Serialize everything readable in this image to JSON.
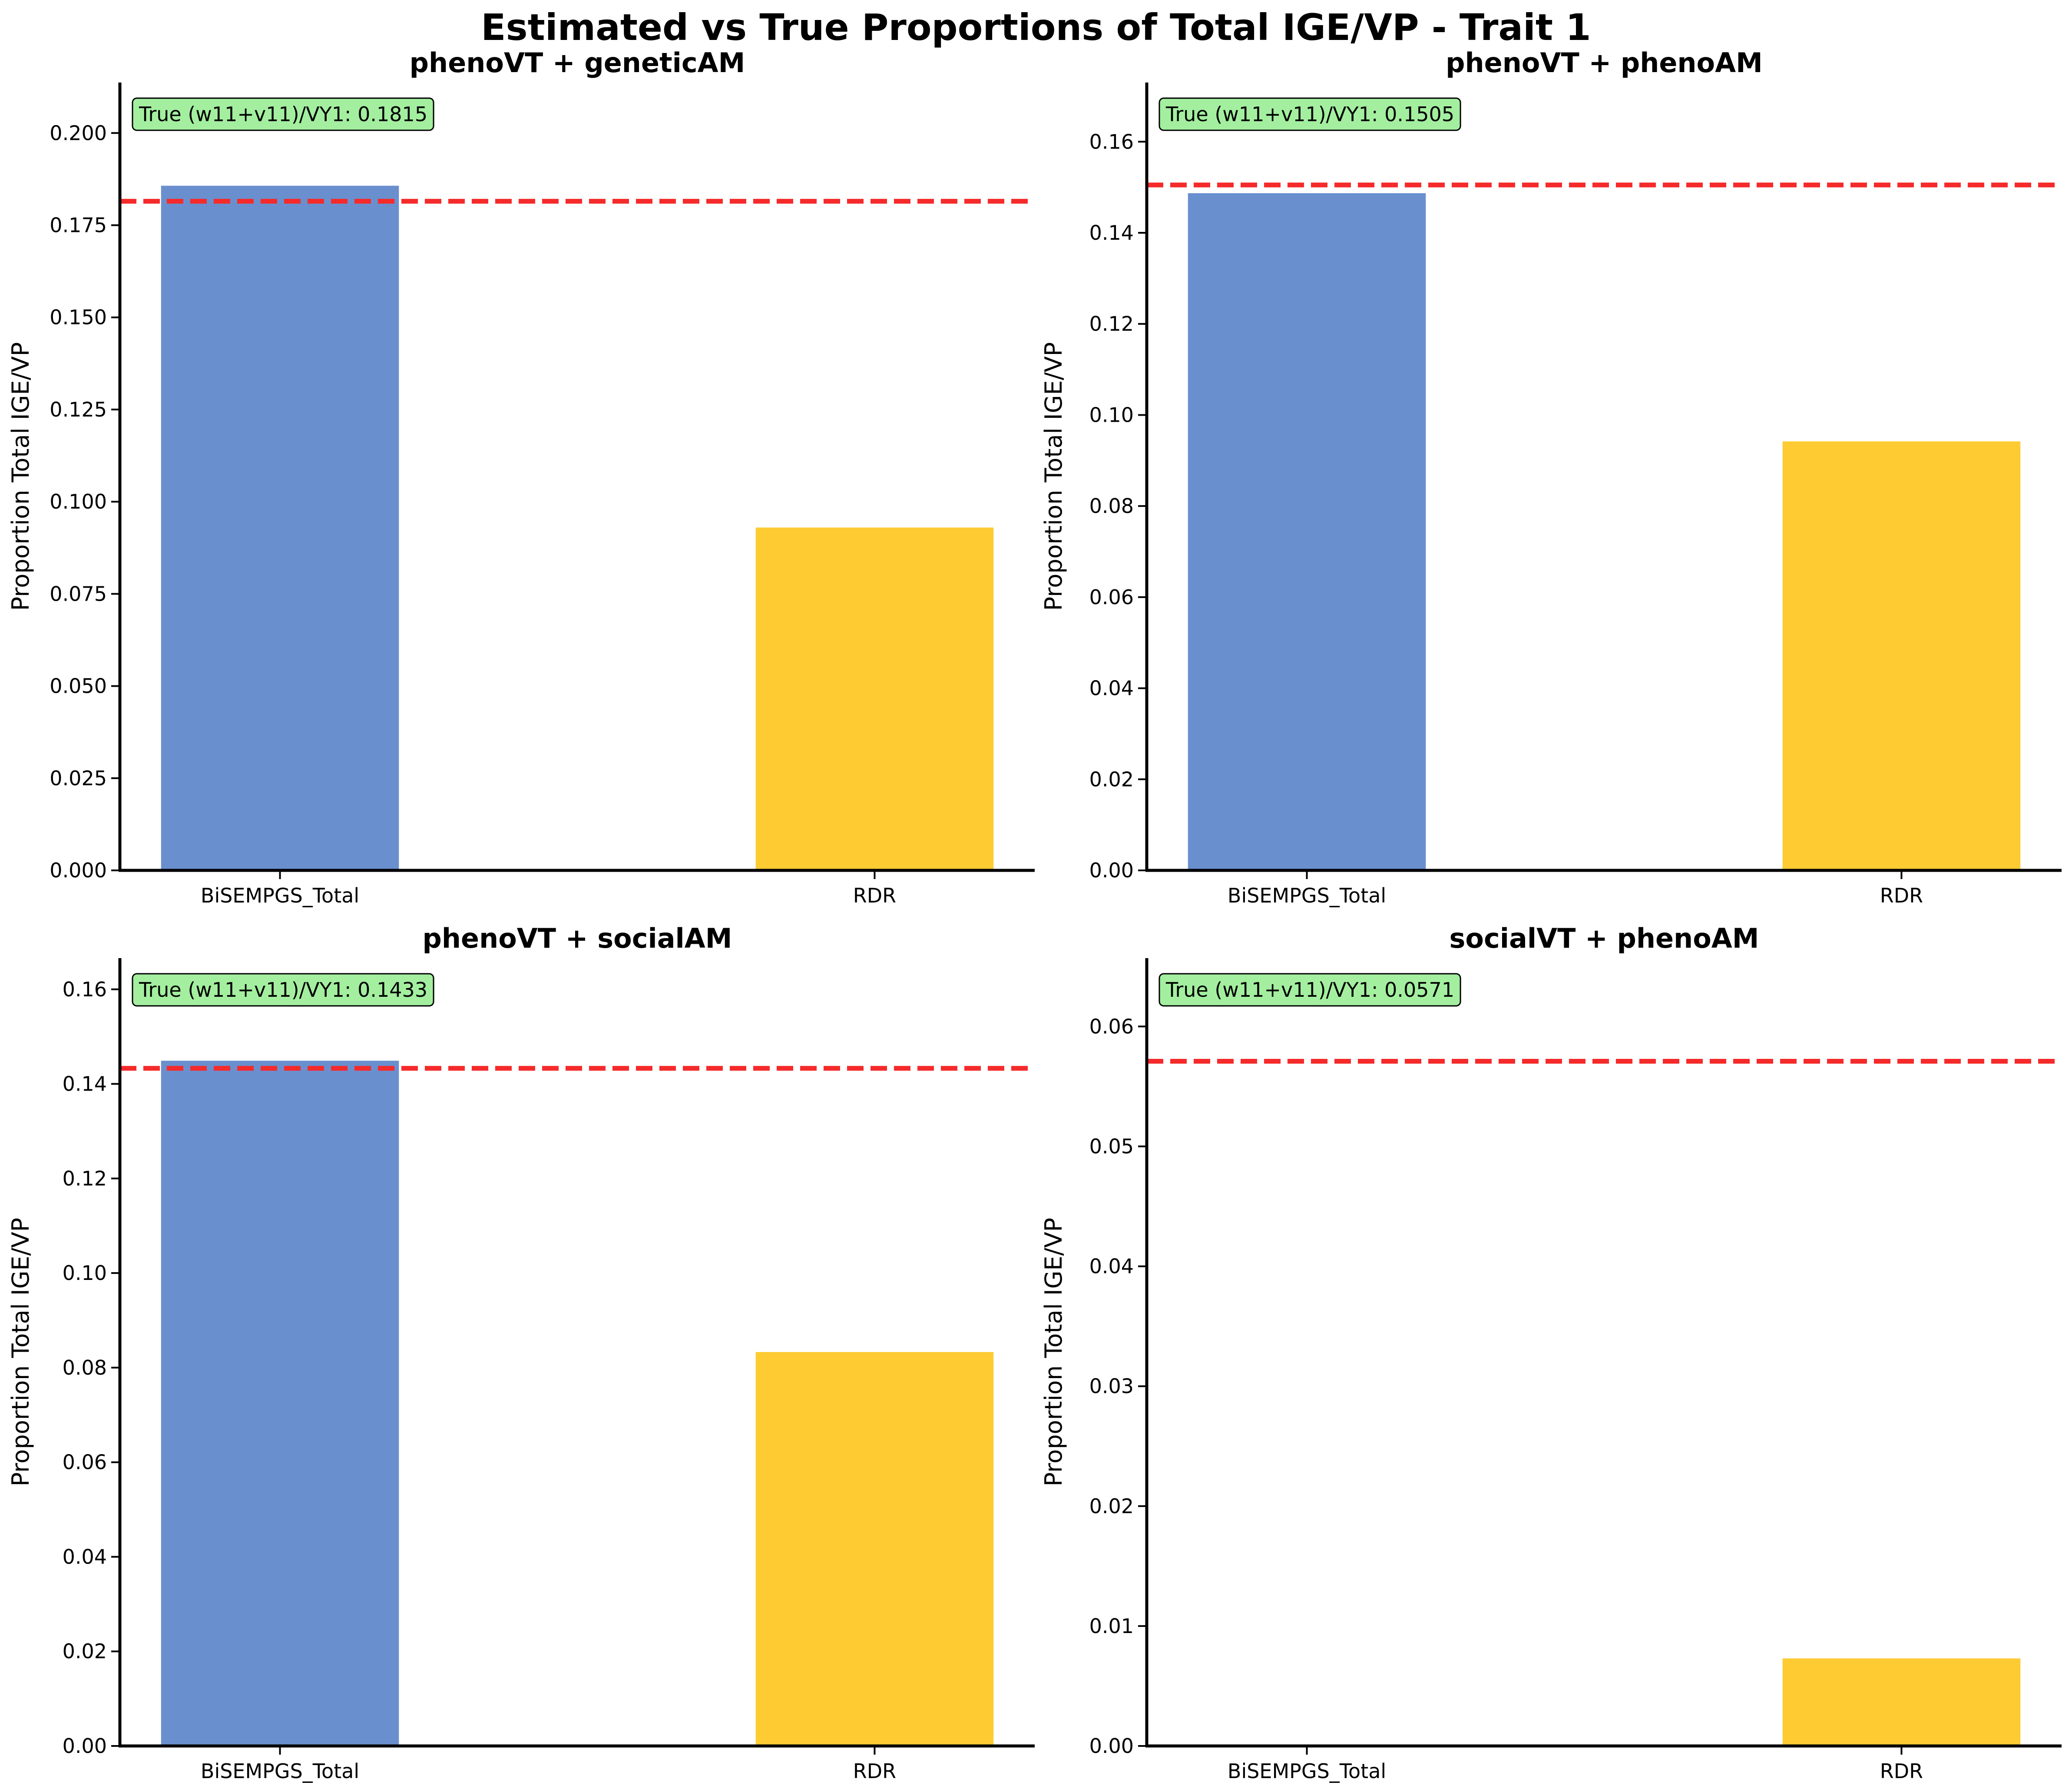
{
  "figure_title": "Estimated vs True Proportions of Total IGE/VP - Trait 1",
  "colors": {
    "bisempgs": "#6a8fce",
    "rdr": "#fecb33",
    "true_line": "#f52a2a",
    "annotation_fill": "#a3ef9f",
    "axis": "#000000"
  },
  "chart_data": [
    {
      "type": "bar",
      "title": "phenoVT + geneticAM",
      "categories": [
        "BiSEMPGS_Total",
        "RDR"
      ],
      "values": [
        0.1857,
        0.093
      ],
      "xlabel": "",
      "ylabel": "Proportion Total IGE/VP",
      "ylim": [
        0,
        0.2137
      ],
      "yticks": [
        "0.000",
        "0.025",
        "0.050",
        "0.075",
        "0.100",
        "0.125",
        "0.150",
        "0.175",
        "0.200"
      ],
      "true_value": 0.1815,
      "annotation": "True (w11+v11)/VY1: 0.1815"
    },
    {
      "type": "bar",
      "title": "phenoVT + phenoAM",
      "categories": [
        "BiSEMPGS_Total",
        "RDR"
      ],
      "values": [
        0.1487,
        0.0942
      ],
      "xlabel": "",
      "ylabel": "Proportion Total IGE/VP",
      "ylim": [
        0,
        0.173
      ],
      "yticks": [
        "0.00",
        "0.02",
        "0.04",
        "0.06",
        "0.08",
        "0.10",
        "0.12",
        "0.14",
        "0.16"
      ],
      "true_value": 0.1505,
      "annotation": "True (w11+v11)/VY1: 0.1505"
    },
    {
      "type": "bar",
      "title": "phenoVT + socialAM",
      "categories": [
        "BiSEMPGS_Total",
        "RDR"
      ],
      "values": [
        0.1449,
        0.0833
      ],
      "xlabel": "",
      "ylabel": "Proportion Total IGE/VP",
      "ylim": [
        0,
        0.1666
      ],
      "yticks": [
        "0.00",
        "0.02",
        "0.04",
        "0.06",
        "0.08",
        "0.10",
        "0.12",
        "0.14",
        "0.16"
      ],
      "true_value": 0.1433,
      "annotation": "True (w11+v11)/VY1: 0.1433"
    },
    {
      "type": "bar",
      "title": "socialVT + phenoAM",
      "categories": [
        "BiSEMPGS_Total",
        "RDR"
      ],
      "values": [
        0.0,
        0.0073
      ],
      "xlabel": "",
      "ylabel": "Proportion Total IGE/VP",
      "ylim": [
        0,
        0.0657
      ],
      "yticks": [
        "0.00",
        "0.01",
        "0.02",
        "0.03",
        "0.04",
        "0.05",
        "0.06"
      ],
      "true_value": 0.0571,
      "annotation": "True (w11+v11)/VY1: 0.0571"
    }
  ]
}
